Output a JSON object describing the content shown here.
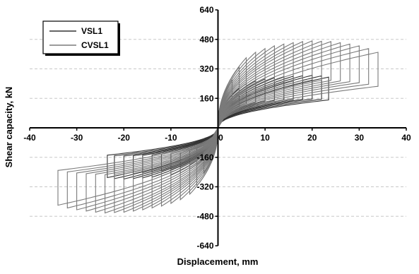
{
  "chart_data": {
    "type": "line",
    "title": "",
    "xlabel": "Displacement, mm",
    "ylabel": "Shear capacity, kN",
    "xlim": [
      -40,
      40
    ],
    "ylim": [
      -640,
      640
    ],
    "xticks": [
      -40,
      -30,
      -20,
      -10,
      0,
      10,
      20,
      30,
      40
    ],
    "yticks": [
      -640,
      -480,
      -320,
      -160,
      0,
      160,
      320,
      480,
      640
    ],
    "grid": "horizontal dashed",
    "legend_position": "top-left",
    "colors": {
      "VSL1": "#333333",
      "CVSL1": "#7a7a7a"
    },
    "series": [
      {
        "name": "VSL1",
        "cycles": [
          {
            "amp": 1.5,
            "peak_pos": 120,
            "peak_neg": -110
          },
          {
            "amp": 3.0,
            "peak_pos": 180,
            "peak_neg": -165
          },
          {
            "amp": 4.5,
            "peak_pos": 215,
            "peak_neg": -200
          },
          {
            "amp": 6.0,
            "peak_pos": 240,
            "peak_neg": -225
          },
          {
            "amp": 8.0,
            "peak_pos": 255,
            "peak_neg": -245
          },
          {
            "amp": 10.0,
            "peak_pos": 265,
            "peak_neg": -255
          },
          {
            "amp": 12.0,
            "peak_pos": 272,
            "peak_neg": -262
          },
          {
            "amp": 14.0,
            "peak_pos": 278,
            "peak_neg": -268
          },
          {
            "amp": 16.0,
            "peak_pos": 280,
            "peak_neg": -272
          },
          {
            "amp": 18.0,
            "peak_pos": 283,
            "peak_neg": -276
          },
          {
            "amp": 20.0,
            "peak_pos": 285,
            "peak_neg": -278
          },
          {
            "amp": 22.0,
            "peak_pos": 282,
            "peak_neg": -276
          },
          {
            "amp": 23.5,
            "peak_pos": 275,
            "peak_neg": -270
          }
        ]
      },
      {
        "name": "CVSL1",
        "cycles": [
          {
            "amp": 1.5,
            "peak_pos": 160,
            "peak_neg": -150
          },
          {
            "amp": 3.0,
            "peak_pos": 260,
            "peak_neg": -245
          },
          {
            "amp": 4.5,
            "peak_pos": 330,
            "peak_neg": -315
          },
          {
            "amp": 6.0,
            "peak_pos": 380,
            "peak_neg": -360
          },
          {
            "amp": 8.0,
            "peak_pos": 410,
            "peak_neg": -390
          },
          {
            "amp": 10.0,
            "peak_pos": 430,
            "peak_neg": -410
          },
          {
            "amp": 12.0,
            "peak_pos": 445,
            "peak_neg": -425
          },
          {
            "amp": 14.0,
            "peak_pos": 455,
            "peak_neg": -435
          },
          {
            "amp": 16.0,
            "peak_pos": 462,
            "peak_neg": -445
          },
          {
            "amp": 18.0,
            "peak_pos": 468,
            "peak_neg": -452
          },
          {
            "amp": 20.0,
            "peak_pos": 472,
            "peak_neg": -458
          },
          {
            "amp": 22.0,
            "peak_pos": 470,
            "peak_neg": -460
          },
          {
            "amp": 24.0,
            "peak_pos": 468,
            "peak_neg": -462
          },
          {
            "amp": 26.0,
            "peak_pos": 462,
            "peak_neg": -458
          },
          {
            "amp": 28.0,
            "peak_pos": 455,
            "peak_neg": -452
          },
          {
            "amp": 30.0,
            "peak_pos": 445,
            "peak_neg": -445
          },
          {
            "amp": 32.0,
            "peak_pos": 430,
            "peak_neg": -435
          },
          {
            "amp": 34.0,
            "peak_pos": 410,
            "peak_neg": -420
          }
        ]
      }
    ]
  }
}
